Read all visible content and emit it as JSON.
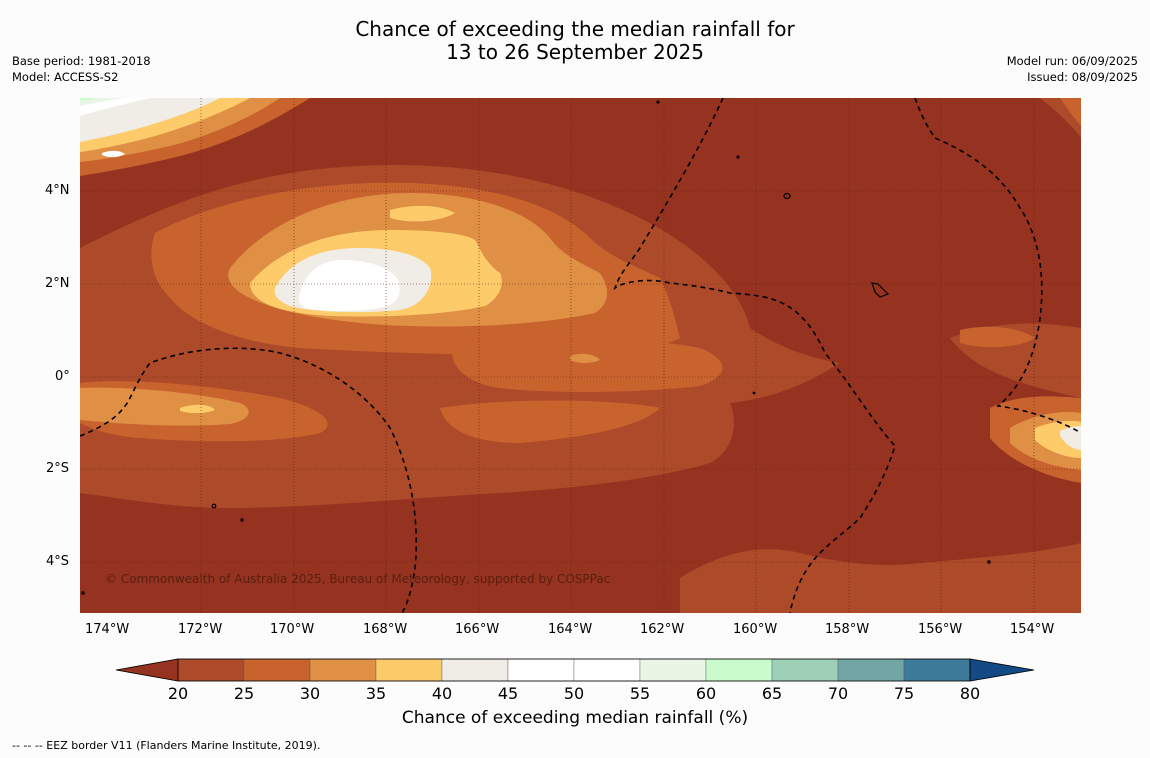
{
  "title": {
    "line1": "Chance of exceeding the median rainfall for",
    "line2": "13 to 26 September 2025"
  },
  "meta_left": {
    "base_period": "Base period: 1981-2018",
    "model": "Model: ACCESS-S2"
  },
  "meta_right": {
    "model_run": "Model run: 06/09/2025",
    "issued": "Issued: 08/09/2025"
  },
  "lat_labels": [
    "4°N",
    "2°N",
    "0°",
    "2°S",
    "4°S"
  ],
  "lon_labels": [
    "174°W",
    "172°W",
    "170°W",
    "168°W",
    "166°W",
    "164°W",
    "162°W",
    "160°W",
    "158°W",
    "156°W",
    "154°W"
  ],
  "copyright": "© Commonwealth of Australia 2025, Bureau of Meteorology, supported by COSPPac",
  "colorbar": {
    "ticks": [
      "20",
      "25",
      "30",
      "35",
      "40",
      "45",
      "50",
      "55",
      "60",
      "65",
      "70",
      "75",
      "80"
    ],
    "colors": [
      "#ad4a2a",
      "#c9632e",
      "#df9045",
      "#fecb6b",
      "#f0ece6",
      "#ffffff",
      "#ffffff",
      "#e9f6e6",
      "#c9fbcc",
      "#9ed0b8",
      "#72a6a6",
      "#3e7a99"
    ],
    "under_color": "#953320",
    "over_color": "#134a86",
    "title": "Chance of exceeding median rainfall (%)"
  },
  "footnote": "--  --  -- EEZ border V11 (Flanders Marine Institute, 2019)."
}
